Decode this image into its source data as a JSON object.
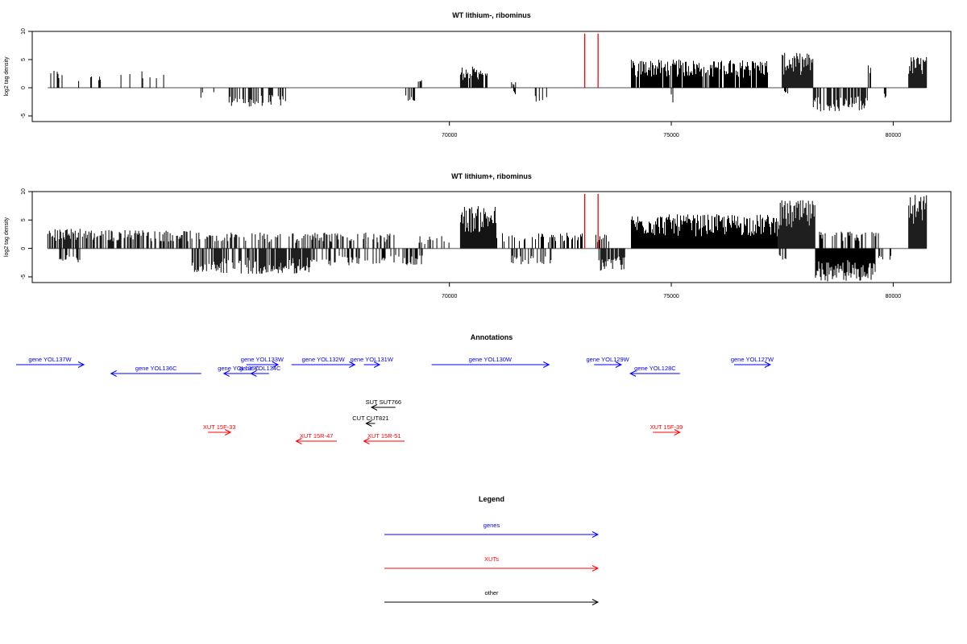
{
  "chart_data": [
    {
      "type": "bar",
      "title": "WT lithium-, ribominus",
      "ylabel": "log2 tag density",
      "xlim": [
        60600,
        81300
      ],
      "ylim": [
        -6,
        10
      ],
      "yticks": [
        -5,
        0,
        5,
        10
      ],
      "xticks": [
        70000,
        75000,
        80000
      ],
      "red_markers": [
        73050,
        73350
      ],
      "positive_regions": [
        {
          "start": 61000,
          "end": 61300,
          "max": 3.2,
          "density": 0.5
        },
        {
          "start": 61500,
          "end": 62300,
          "max": 2.4,
          "density": 0.2
        },
        {
          "start": 62600,
          "end": 63600,
          "max": 3.0,
          "density": 0.18
        },
        {
          "start": 69300,
          "end": 69450,
          "max": 1.8,
          "density": 0.5
        },
        {
          "start": 70250,
          "end": 70850,
          "max": 3.8,
          "density": 0.9
        },
        {
          "start": 71400,
          "end": 71500,
          "max": 1.0,
          "density": 0.5
        },
        {
          "start": 74100,
          "end": 77200,
          "max": 5.0,
          "density": 0.85
        },
        {
          "start": 77500,
          "end": 78200,
          "max": 6.2,
          "density": 1.0
        },
        {
          "start": 79400,
          "end": 79500,
          "max": 4.5,
          "density": 0.6
        },
        {
          "start": 80350,
          "end": 80750,
          "max": 5.6,
          "density": 1.0
        }
      ],
      "negative_regions": [
        {
          "start": 64400,
          "end": 64700,
          "max": -2.2,
          "density": 0.4
        },
        {
          "start": 65000,
          "end": 66400,
          "max": -3.5,
          "density": 0.35
        },
        {
          "start": 69000,
          "end": 69250,
          "max": -2.8,
          "density": 0.4
        },
        {
          "start": 71450,
          "end": 71500,
          "max": -1.2,
          "density": 0.6
        },
        {
          "start": 71900,
          "end": 72200,
          "max": -2.8,
          "density": 0.4
        },
        {
          "start": 75000,
          "end": 75050,
          "max": -3.0,
          "density": 0.6
        },
        {
          "start": 76900,
          "end": 76950,
          "max": -2.8,
          "density": 0.6
        },
        {
          "start": 77550,
          "end": 77650,
          "max": -1.6,
          "density": 0.5
        },
        {
          "start": 78200,
          "end": 79450,
          "max": -4.2,
          "density": 0.7
        },
        {
          "start": 79800,
          "end": 79850,
          "max": -2.0,
          "density": 0.6
        }
      ]
    },
    {
      "type": "bar",
      "title": "WT lithium+, ribominus",
      "ylabel": "log2 tag density",
      "xlim": [
        60600,
        81300
      ],
      "ylim": [
        -6,
        10
      ],
      "yticks": [
        -5,
        0,
        5,
        10
      ],
      "xticks": [
        70000,
        75000,
        80000
      ],
      "red_markers": [
        73050,
        73350
      ],
      "positive_regions": [
        {
          "start": 60950,
          "end": 62000,
          "max": 3.5,
          "density": 0.7
        },
        {
          "start": 62000,
          "end": 64200,
          "max": 3.3,
          "density": 0.55
        },
        {
          "start": 64300,
          "end": 66500,
          "max": 2.8,
          "density": 0.4
        },
        {
          "start": 66500,
          "end": 68800,
          "max": 2.8,
          "density": 0.35
        },
        {
          "start": 69300,
          "end": 70000,
          "max": 2.2,
          "density": 0.3
        },
        {
          "start": 70250,
          "end": 71050,
          "max": 7.5,
          "density": 1.0
        },
        {
          "start": 71050,
          "end": 73000,
          "max": 2.8,
          "density": 0.4
        },
        {
          "start": 73300,
          "end": 73600,
          "max": 2.6,
          "density": 0.6
        },
        {
          "start": 74100,
          "end": 77400,
          "max": 6.0,
          "density": 1.0
        },
        {
          "start": 77400,
          "end": 78250,
          "max": 8.5,
          "density": 1.0
        },
        {
          "start": 78250,
          "end": 79700,
          "max": 3.0,
          "density": 0.4
        },
        {
          "start": 80350,
          "end": 80750,
          "max": 9.5,
          "density": 1.0
        }
      ],
      "negative_regions": [
        {
          "start": 61200,
          "end": 61700,
          "max": -2.5,
          "density": 0.4
        },
        {
          "start": 64200,
          "end": 66900,
          "max": -4.5,
          "density": 0.7
        },
        {
          "start": 66900,
          "end": 69400,
          "max": -3.0,
          "density": 0.4
        },
        {
          "start": 71400,
          "end": 72300,
          "max": -2.8,
          "density": 0.3
        },
        {
          "start": 73350,
          "end": 73950,
          "max": -4.0,
          "density": 0.8
        },
        {
          "start": 77400,
          "end": 77600,
          "max": -2.0,
          "density": 0.5
        },
        {
          "start": 78250,
          "end": 79600,
          "max": -5.8,
          "density": 1.0
        },
        {
          "start": 79600,
          "end": 79950,
          "max": -2.5,
          "density": 0.4
        }
      ]
    },
    {
      "type": "annotation",
      "title": "Annotations",
      "xlim": [
        60600,
        81300
      ],
      "features": [
        {
          "label": "gene YOL137W",
          "start": 60600,
          "end": 62100,
          "strand": "+",
          "class": "gene",
          "row": 1
        },
        {
          "label": "gene YOL136C",
          "start": 62700,
          "end": 64700,
          "strand": "-",
          "class": "gene",
          "row": 2
        },
        {
          "label": "gene YOL135C",
          "start": 65200,
          "end": 65850,
          "strand": "-",
          "class": "gene",
          "row": 2
        },
        {
          "label": "gene YOL134C",
          "start": 65800,
          "end": 66200,
          "strand": "-",
          "class": "gene",
          "row": 2
        },
        {
          "label": "gene YOL133W",
          "start": 65700,
          "end": 66400,
          "strand": "+",
          "class": "gene",
          "row": 1
        },
        {
          "label": "gene YOL132W",
          "start": 66700,
          "end": 68100,
          "strand": "+",
          "class": "gene",
          "row": 1
        },
        {
          "label": "gene YOL131W",
          "start": 68300,
          "end": 68650,
          "strand": "+",
          "class": "gene",
          "row": 1
        },
        {
          "label": "gene YOL130W",
          "start": 69800,
          "end": 72400,
          "strand": "+",
          "class": "gene",
          "row": 1
        },
        {
          "label": "gene YOL129W",
          "start": 73400,
          "end": 74000,
          "strand": "+",
          "class": "gene",
          "row": 1
        },
        {
          "label": "gene YOL128C",
          "start": 74200,
          "end": 75300,
          "strand": "-",
          "class": "gene",
          "row": 2
        },
        {
          "label": "gene YOL127W",
          "start": 76500,
          "end": 77300,
          "strand": "+",
          "class": "gene",
          "row": 1
        },
        {
          "label": "SUT SUT766",
          "start": 68470,
          "end": 69000,
          "strand": "-",
          "class": "other",
          "row": 5
        },
        {
          "label": "CUT CUT821",
          "start": 68350,
          "end": 68550,
          "strand": "-",
          "class": "other",
          "row": 6
        },
        {
          "label": "XUT 15F-33",
          "start": 64850,
          "end": 65350,
          "strand": "+",
          "class": "xut",
          "row": 7
        },
        {
          "label": "XUT 15R-47",
          "start": 66800,
          "end": 67700,
          "strand": "-",
          "class": "xut",
          "row": 8
        },
        {
          "label": "XUT 15R-51",
          "start": 68300,
          "end": 69200,
          "strand": "-",
          "class": "xut",
          "row": 8
        },
        {
          "label": "XUT 15F-39",
          "start": 74700,
          "end": 75300,
          "strand": "+",
          "class": "xut",
          "row": 7
        }
      ]
    },
    {
      "type": "legend",
      "title": "Legend",
      "entries": [
        {
          "label": "genes",
          "color": "#0000ff"
        },
        {
          "label": "XUTs",
          "color": "#ff0000"
        },
        {
          "label": "other",
          "color": "#000000"
        }
      ]
    }
  ],
  "colors": {
    "gene": "#0000ff",
    "xut": "#ff0000",
    "other": "#000000",
    "marker": "#ff0000",
    "axis": "#000000",
    "baseline": "#888888"
  }
}
